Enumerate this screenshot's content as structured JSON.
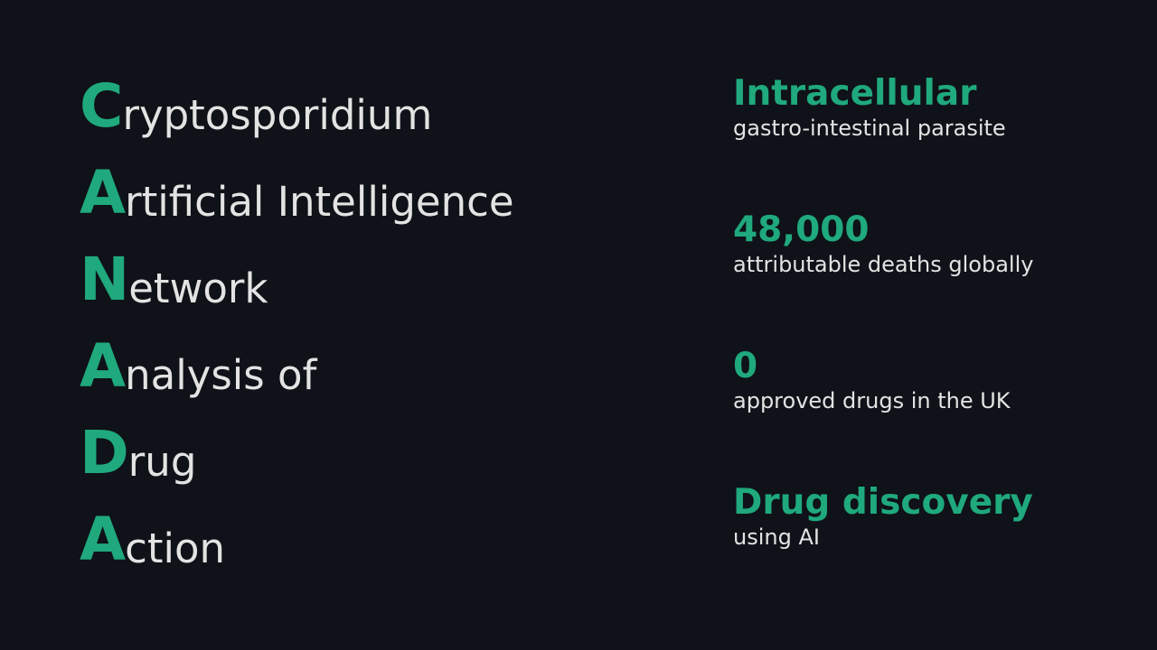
{
  "colors": {
    "background": "#0f1218",
    "accent": "#1fa97d",
    "text": "#e3e3e3"
  },
  "acronym": [
    {
      "initial": "C",
      "rest": "ryptosporidium"
    },
    {
      "initial": "A",
      "rest": "rtificial Intelligence"
    },
    {
      "initial": "N",
      "rest": "etwork"
    },
    {
      "initial": "A",
      "rest": "nalysis of"
    },
    {
      "initial": "D",
      "rest": "rug"
    },
    {
      "initial": "A",
      "rest": "ction"
    }
  ],
  "facts": [
    {
      "headline": "Intracellular",
      "detail": "gastro-intestinal parasite"
    },
    {
      "headline": "48,000",
      "detail": "attributable deaths globally"
    },
    {
      "headline": "0",
      "detail": "approved drugs in the UK"
    },
    {
      "headline": "Drug discovery",
      "detail": "using AI"
    }
  ]
}
